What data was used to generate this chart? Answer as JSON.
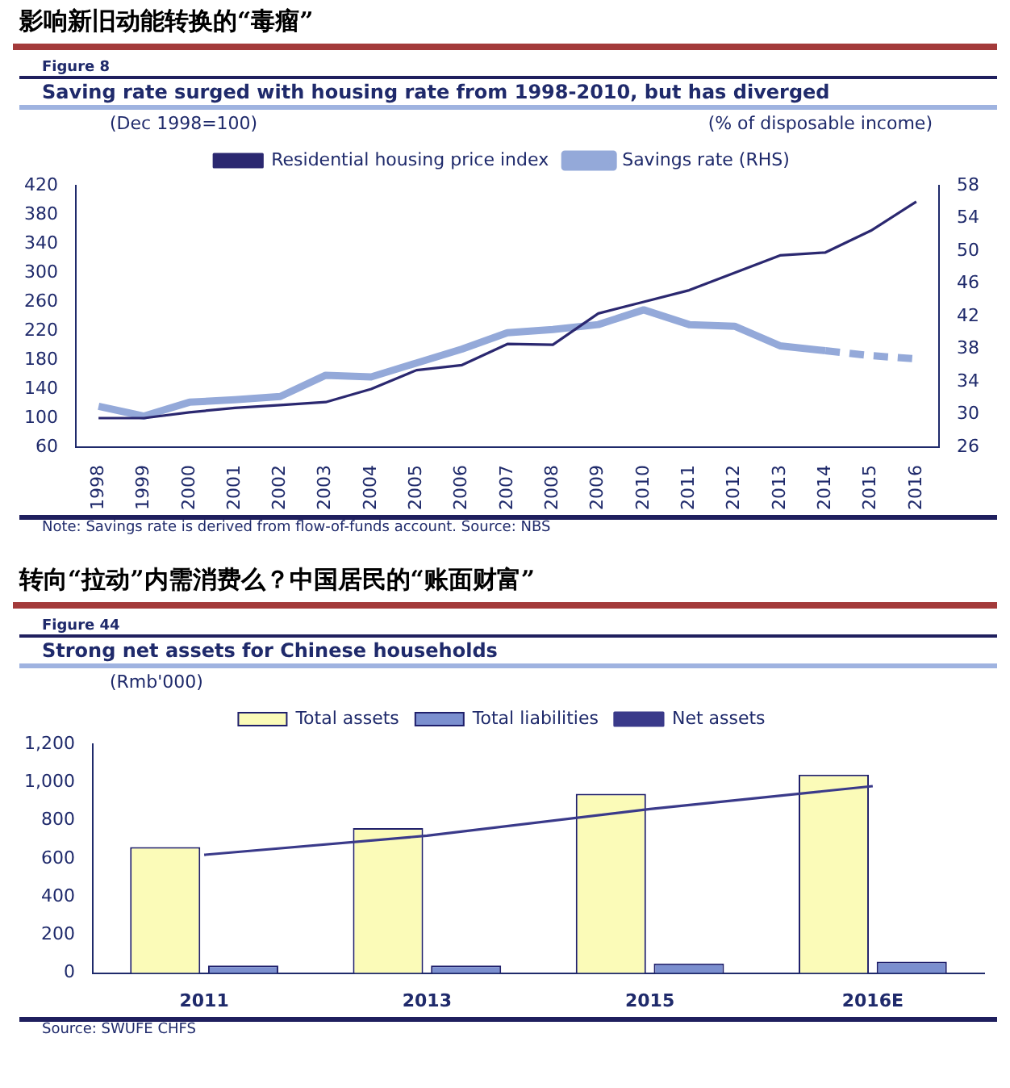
{
  "chart_data": [
    {
      "type": "line",
      "title": "影响新旧动能转换的“毒瘤”",
      "subtitle": "Saving rate surged with housing rate from 1998-2010, but has diverged",
      "ylabel": "(Dec 1998=100)",
      "y2label": "(% of disposable income)",
      "annotations": [
        "Figure 8",
        "Note: Savings rate is derived from flow-of-funds account. Source: NBS"
      ],
      "categories": [
        "1998",
        "1999",
        "2000",
        "2001",
        "2002",
        "2003",
        "2004",
        "2005",
        "2006",
        "2007",
        "2008",
        "2009",
        "2010",
        "2011",
        "2012",
        "2013",
        "2014",
        "2015",
        "2016"
      ],
      "series": [
        {
          "name": "Residential housing price index",
          "color": "#2b2870",
          "values": [
            100,
            100,
            108,
            114,
            118,
            122,
            140,
            166,
            173,
            202,
            201,
            244,
            260,
            276,
            300,
            324,
            328,
            358,
            398
          ]
        },
        {
          "name": "Savings rate (RHS)",
          "color": "#94a9d9",
          "axis": "y2",
          "values": [
            31,
            29.8,
            31.5,
            31.8,
            32.2,
            34.8,
            34.6,
            36.3,
            38,
            40,
            40.4,
            41,
            42.8,
            41,
            40.8,
            38.4,
            37.8,
            null,
            null
          ]
        },
        {
          "color": "#94a9d9",
          "axis": "y2",
          "line_style": "dashed",
          "values": [
            null,
            null,
            null,
            null,
            null,
            null,
            null,
            null,
            null,
            null,
            null,
            null,
            null,
            null,
            null,
            null,
            37.8,
            37.2,
            36.8
          ]
        }
      ],
      "ylim": [
        60,
        420
      ],
      "yticks": [
        60,
        100,
        140,
        180,
        220,
        260,
        300,
        340,
        380,
        420
      ],
      "y2lim": [
        26,
        58
      ],
      "y2ticks": [
        26,
        30,
        34,
        38,
        42,
        46,
        50,
        54,
        58
      ],
      "grid": false,
      "legend": "top"
    },
    {
      "type": "bar",
      "title": "转向“拉动”内需消费么？中国居民的“账面财富”",
      "subtitle": "Strong net assets for Chinese households",
      "ylabel": "(Rmb'000)",
      "annotations": [
        "Figure 44",
        "Source: SWUFE CHFS"
      ],
      "categories": [
        "2011",
        "2013",
        "2015",
        "2016E"
      ],
      "series": [
        {
          "name": "Total assets",
          "color": "#fbfbb8",
          "values": [
            660,
            760,
            940,
            1040
          ]
        },
        {
          "name": "Total liabilities",
          "color": "#7b8fcf",
          "values": [
            40,
            40,
            50,
            60
          ]
        },
        {
          "name": "Net assets",
          "color": "#3a3a8a",
          "type": "line",
          "values": [
            620,
            720,
            860,
            980
          ]
        }
      ],
      "ylim": [
        0,
        1200
      ],
      "yticks": [
        0,
        200,
        400,
        600,
        800,
        {
          "value": 1000,
          "label": "1,000"
        },
        {
          "value": 1200,
          "label": "1,200"
        }
      ],
      "grid": false,
      "legend": "top"
    }
  ]
}
